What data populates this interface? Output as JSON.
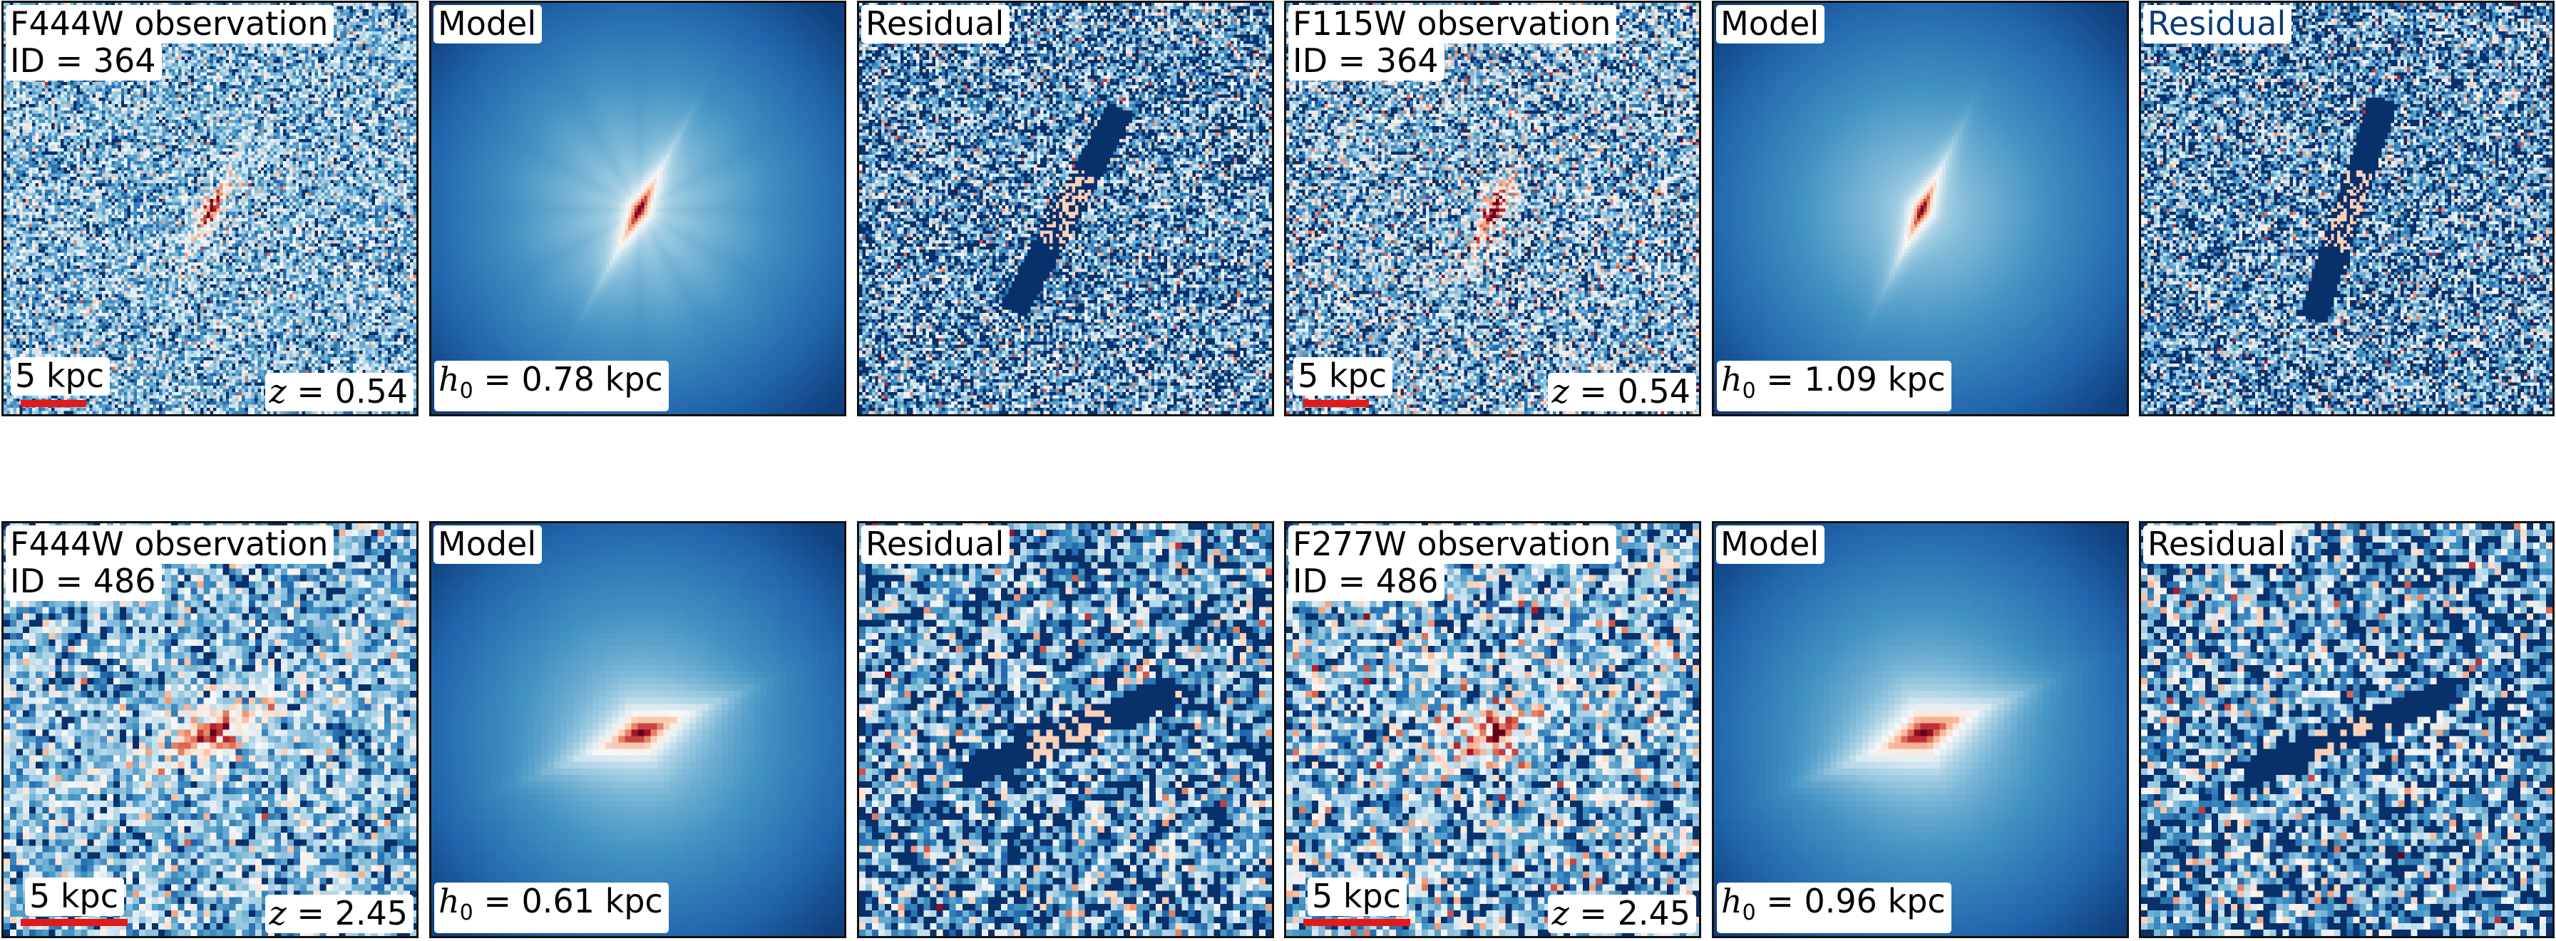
{
  "rows": [
    {
      "id_text": "ID = 364",
      "panels": [
        {
          "kind": "obs",
          "title": "F444W observation",
          "id_label": "ID = 364",
          "corner": "z = 0.54",
          "scale": "5 kpc",
          "seed": 11,
          "noise": 0.9,
          "angle": -62,
          "elong": 4.6,
          "size": 0.13
        },
        {
          "kind": "model",
          "title": "Model",
          "corner": "h0 = 0.78 kpc",
          "seed": 12,
          "angle": -62,
          "elong": 4.6,
          "size": 0.13,
          "spikes": true
        },
        {
          "kind": "res",
          "title": "Residual",
          "seed": 13,
          "angle": -62,
          "blue_title": false
        },
        {
          "kind": "obs",
          "title": "F115W observation",
          "id_label": "ID = 364",
          "corner": "z = 0.54",
          "scale": "5 kpc",
          "seed": 14,
          "noise": 1.2,
          "angle": -65,
          "elong": 4.2,
          "size": 0.14
        },
        {
          "kind": "model",
          "title": "Model",
          "corner": "h0 = 1.09 kpc",
          "seed": 15,
          "angle": -65,
          "elong": 4.4,
          "size": 0.12,
          "spikes": false
        },
        {
          "kind": "res",
          "title": "Residual",
          "seed": 16,
          "angle": -72,
          "blue_title": true
        }
      ]
    },
    {
      "id_text": "ID = 486",
      "panels": [
        {
          "kind": "obs",
          "title": "F444W observation",
          "id_label": "ID = 486",
          "corner": "z = 2.45",
          "scale": "5 kpc",
          "seed": 21,
          "noise": 0.85,
          "angle": -22,
          "elong": 2.3,
          "size": 0.16
        },
        {
          "kind": "model",
          "title": "Model",
          "corner": "h0 = 0.61 kpc",
          "seed": 22,
          "angle": -22,
          "elong": 2.6,
          "size": 0.15,
          "spikes": false
        },
        {
          "kind": "res",
          "title": "Residual",
          "seed": 23,
          "angle": -22,
          "blue_title": false
        },
        {
          "kind": "obs",
          "title": "F277W observation",
          "id_label": "ID = 486",
          "corner": "z = 2.45",
          "scale": "5 kpc",
          "seed": 24,
          "noise": 1.1,
          "angle": -22,
          "elong": 2.3,
          "size": 0.16
        },
        {
          "kind": "model",
          "title": "Model",
          "corner": "h0 = 0.96 kpc",
          "seed": 25,
          "angle": -22,
          "elong": 2.6,
          "size": 0.17,
          "spikes": false
        },
        {
          "kind": "res",
          "title": "Residual",
          "seed": 26,
          "angle": -22,
          "blue_title": false
        }
      ]
    }
  ],
  "colormap": {
    "name": "RdBu_r",
    "stops": [
      "#08306b",
      "#2166ac",
      "#4393c3",
      "#92c5de",
      "#d1e5f0",
      "#f7f7f7",
      "#fddbc7",
      "#f4a582",
      "#d6604d",
      "#b2182b",
      "#67001f"
    ]
  }
}
